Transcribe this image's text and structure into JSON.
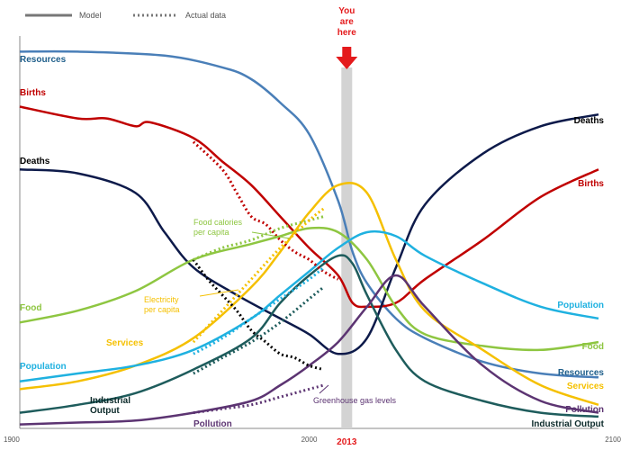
{
  "chart_data": {
    "type": "line",
    "title": "",
    "xlabel": "",
    "ylabel": "",
    "xlim": [
      1900,
      2100
    ],
    "ylim": [
      0,
      100
    ],
    "x_ticks": [
      "1900",
      "2000",
      "2100"
    ],
    "highlight": {
      "x": 2013,
      "label": "2013",
      "marker_text": [
        "You",
        "are",
        "here"
      ],
      "color": "#e41a1c"
    },
    "legend": {
      "position": "top-left",
      "entries": [
        {
          "label": "Model",
          "style": "solid"
        },
        {
          "label": "Actual data",
          "style": "dotted"
        }
      ]
    },
    "series": [
      {
        "name": "Resources",
        "color": "#4a7fb8",
        "label_color": "#1f5f8b",
        "values": [
          [
            1900,
            96
          ],
          [
            1920,
            96
          ],
          [
            1950,
            95
          ],
          [
            1970,
            92
          ],
          [
            1980,
            89
          ],
          [
            1990,
            83
          ],
          [
            2000,
            75
          ],
          [
            2010,
            58
          ],
          [
            2015,
            45
          ],
          [
            2020,
            37
          ],
          [
            2030,
            28
          ],
          [
            2040,
            23
          ],
          [
            2060,
            17
          ],
          [
            2080,
            14
          ],
          [
            2100,
            13
          ]
        ]
      },
      {
        "name": "Births",
        "color": "#c00000",
        "label_color": "#c00000",
        "values": [
          [
            1900,
            82
          ],
          [
            1920,
            79
          ],
          [
            1930,
            79
          ],
          [
            1940,
            77
          ],
          [
            1945,
            78
          ],
          [
            1960,
            74
          ],
          [
            1970,
            68
          ],
          [
            1980,
            62
          ],
          [
            1990,
            54
          ],
          [
            2000,
            46
          ],
          [
            2010,
            39
          ],
          [
            2015,
            32
          ],
          [
            2020,
            31
          ],
          [
            2030,
            32
          ],
          [
            2040,
            38
          ],
          [
            2060,
            48
          ],
          [
            2080,
            59
          ],
          [
            2100,
            66
          ]
        ]
      },
      {
        "name": "Deaths",
        "color": "#0d1a4a",
        "label_color": "#000000",
        "values": [
          [
            1900,
            66
          ],
          [
            1920,
            65
          ],
          [
            1940,
            60
          ],
          [
            1950,
            50
          ],
          [
            1960,
            41
          ],
          [
            1975,
            34
          ],
          [
            1990,
            28
          ],
          [
            2000,
            24
          ],
          [
            2010,
            19
          ],
          [
            2020,
            23
          ],
          [
            2030,
            41
          ],
          [
            2040,
            57
          ],
          [
            2060,
            70
          ],
          [
            2080,
            77
          ],
          [
            2100,
            80
          ]
        ]
      },
      {
        "name": "Food",
        "color": "#8ec641",
        "label_color": "#8ec641",
        "values": [
          [
            1900,
            27
          ],
          [
            1920,
            30
          ],
          [
            1940,
            35
          ],
          [
            1960,
            43
          ],
          [
            1980,
            47
          ],
          [
            1990,
            49
          ],
          [
            2000,
            51
          ],
          [
            2010,
            50
          ],
          [
            2020,
            43
          ],
          [
            2030,
            31
          ],
          [
            2040,
            24
          ],
          [
            2060,
            21
          ],
          [
            2080,
            20
          ],
          [
            2100,
            22
          ]
        ]
      },
      {
        "name": "Services",
        "color": "#f5c000",
        "label_color": "#f5c000",
        "values": [
          [
            1900,
            10
          ],
          [
            1920,
            12
          ],
          [
            1940,
            16
          ],
          [
            1960,
            23
          ],
          [
            1980,
            36
          ],
          [
            1990,
            45
          ],
          [
            2000,
            55
          ],
          [
            2010,
            62
          ],
          [
            2020,
            60
          ],
          [
            2030,
            43
          ],
          [
            2040,
            30
          ],
          [
            2060,
            20
          ],
          [
            2080,
            11
          ],
          [
            2100,
            6
          ]
        ]
      },
      {
        "name": "Population",
        "color": "#1fb1e0",
        "label_color": "#1fb1e0",
        "values": [
          [
            1900,
            12
          ],
          [
            1920,
            14
          ],
          [
            1940,
            16
          ],
          [
            1960,
            20
          ],
          [
            1980,
            28
          ],
          [
            1990,
            34
          ],
          [
            2000,
            40
          ],
          [
            2010,
            46
          ],
          [
            2020,
            50
          ],
          [
            2030,
            49
          ],
          [
            2040,
            44
          ],
          [
            2060,
            37
          ],
          [
            2080,
            31
          ],
          [
            2100,
            28
          ]
        ]
      },
      {
        "name": "Industrial Output",
        "label_lines": [
          "Industrial",
          "Output"
        ],
        "color": "#1e5c5c",
        "label_color": "#0d2b2b",
        "values": [
          [
            1900,
            4
          ],
          [
            1920,
            6
          ],
          [
            1940,
            9
          ],
          [
            1960,
            15
          ],
          [
            1980,
            23
          ],
          [
            1990,
            32
          ],
          [
            2000,
            39
          ],
          [
            2010,
            44
          ],
          [
            2015,
            42
          ],
          [
            2020,
            34
          ],
          [
            2030,
            20
          ],
          [
            2040,
            12
          ],
          [
            2060,
            7
          ],
          [
            2080,
            4
          ],
          [
            2100,
            3
          ]
        ]
      },
      {
        "name": "Pollution",
        "color": "#5c3472",
        "label_color": "#5c3472",
        "values": [
          [
            1900,
            1
          ],
          [
            1920,
            1.5
          ],
          [
            1940,
            2
          ],
          [
            1960,
            4
          ],
          [
            1980,
            7
          ],
          [
            1990,
            11
          ],
          [
            2000,
            16
          ],
          [
            2010,
            22
          ],
          [
            2020,
            31
          ],
          [
            2030,
            39
          ],
          [
            2040,
            31
          ],
          [
            2060,
            16
          ],
          [
            2080,
            7
          ],
          [
            2100,
            4
          ]
        ]
      }
    ],
    "actual_data": [
      {
        "series": "Births",
        "color": "#c00000",
        "values": [
          [
            1960,
            73
          ],
          [
            1970,
            66
          ],
          [
            1975,
            60
          ],
          [
            1980,
            54
          ],
          [
            1985,
            52
          ],
          [
            1990,
            48
          ],
          [
            1995,
            45
          ],
          [
            2000,
            43
          ],
          [
            2005,
            40
          ],
          [
            2010,
            38
          ]
        ]
      },
      {
        "series": "Deaths",
        "color": "#000000",
        "values": [
          [
            1960,
            43
          ],
          [
            1965,
            38
          ],
          [
            1970,
            34
          ],
          [
            1975,
            30
          ],
          [
            1980,
            25
          ],
          [
            1985,
            22
          ],
          [
            1990,
            19
          ],
          [
            1995,
            18
          ],
          [
            2000,
            16
          ],
          [
            2005,
            15
          ]
        ]
      },
      {
        "series": "Food",
        "color": "#8ec641",
        "values": [
          [
            1960,
            43
          ],
          [
            1970,
            46
          ],
          [
            1980,
            48
          ],
          [
            1990,
            51
          ],
          [
            2000,
            53
          ],
          [
            2005,
            54
          ]
        ]
      },
      {
        "series": "Services",
        "color": "#f5c000",
        "values": [
          [
            1960,
            22
          ],
          [
            1970,
            30
          ],
          [
            1980,
            38
          ],
          [
            1990,
            46
          ],
          [
            2000,
            53
          ],
          [
            2005,
            56
          ]
        ]
      },
      {
        "series": "Population",
        "color": "#1fb1e0",
        "values": [
          [
            1960,
            19
          ],
          [
            1970,
            23
          ],
          [
            1980,
            28
          ],
          [
            1990,
            33
          ],
          [
            2000,
            38
          ],
          [
            2005,
            41
          ]
        ]
      },
      {
        "series": "Industrial Output",
        "color": "#1e5c5c",
        "values": [
          [
            1960,
            14
          ],
          [
            1970,
            18
          ],
          [
            1980,
            22
          ],
          [
            1990,
            27
          ],
          [
            2000,
            33
          ],
          [
            2005,
            36
          ]
        ]
      },
      {
        "series": "Pollution",
        "color": "#5c3472",
        "values": [
          [
            1960,
            4
          ],
          [
            1970,
            5
          ],
          [
            1980,
            6
          ],
          [
            1990,
            8
          ],
          [
            2000,
            10
          ],
          [
            2005,
            11
          ]
        ]
      }
    ],
    "annotations": [
      {
        "text": [
          "Food calories",
          "per capita"
        ],
        "color": "#8ec641"
      },
      {
        "text": [
          "Electricity",
          "per capita"
        ],
        "color": "#f5c000"
      },
      {
        "text": [
          "Greenhouse gas levels"
        ],
        "color": "#5c3472"
      }
    ]
  }
}
